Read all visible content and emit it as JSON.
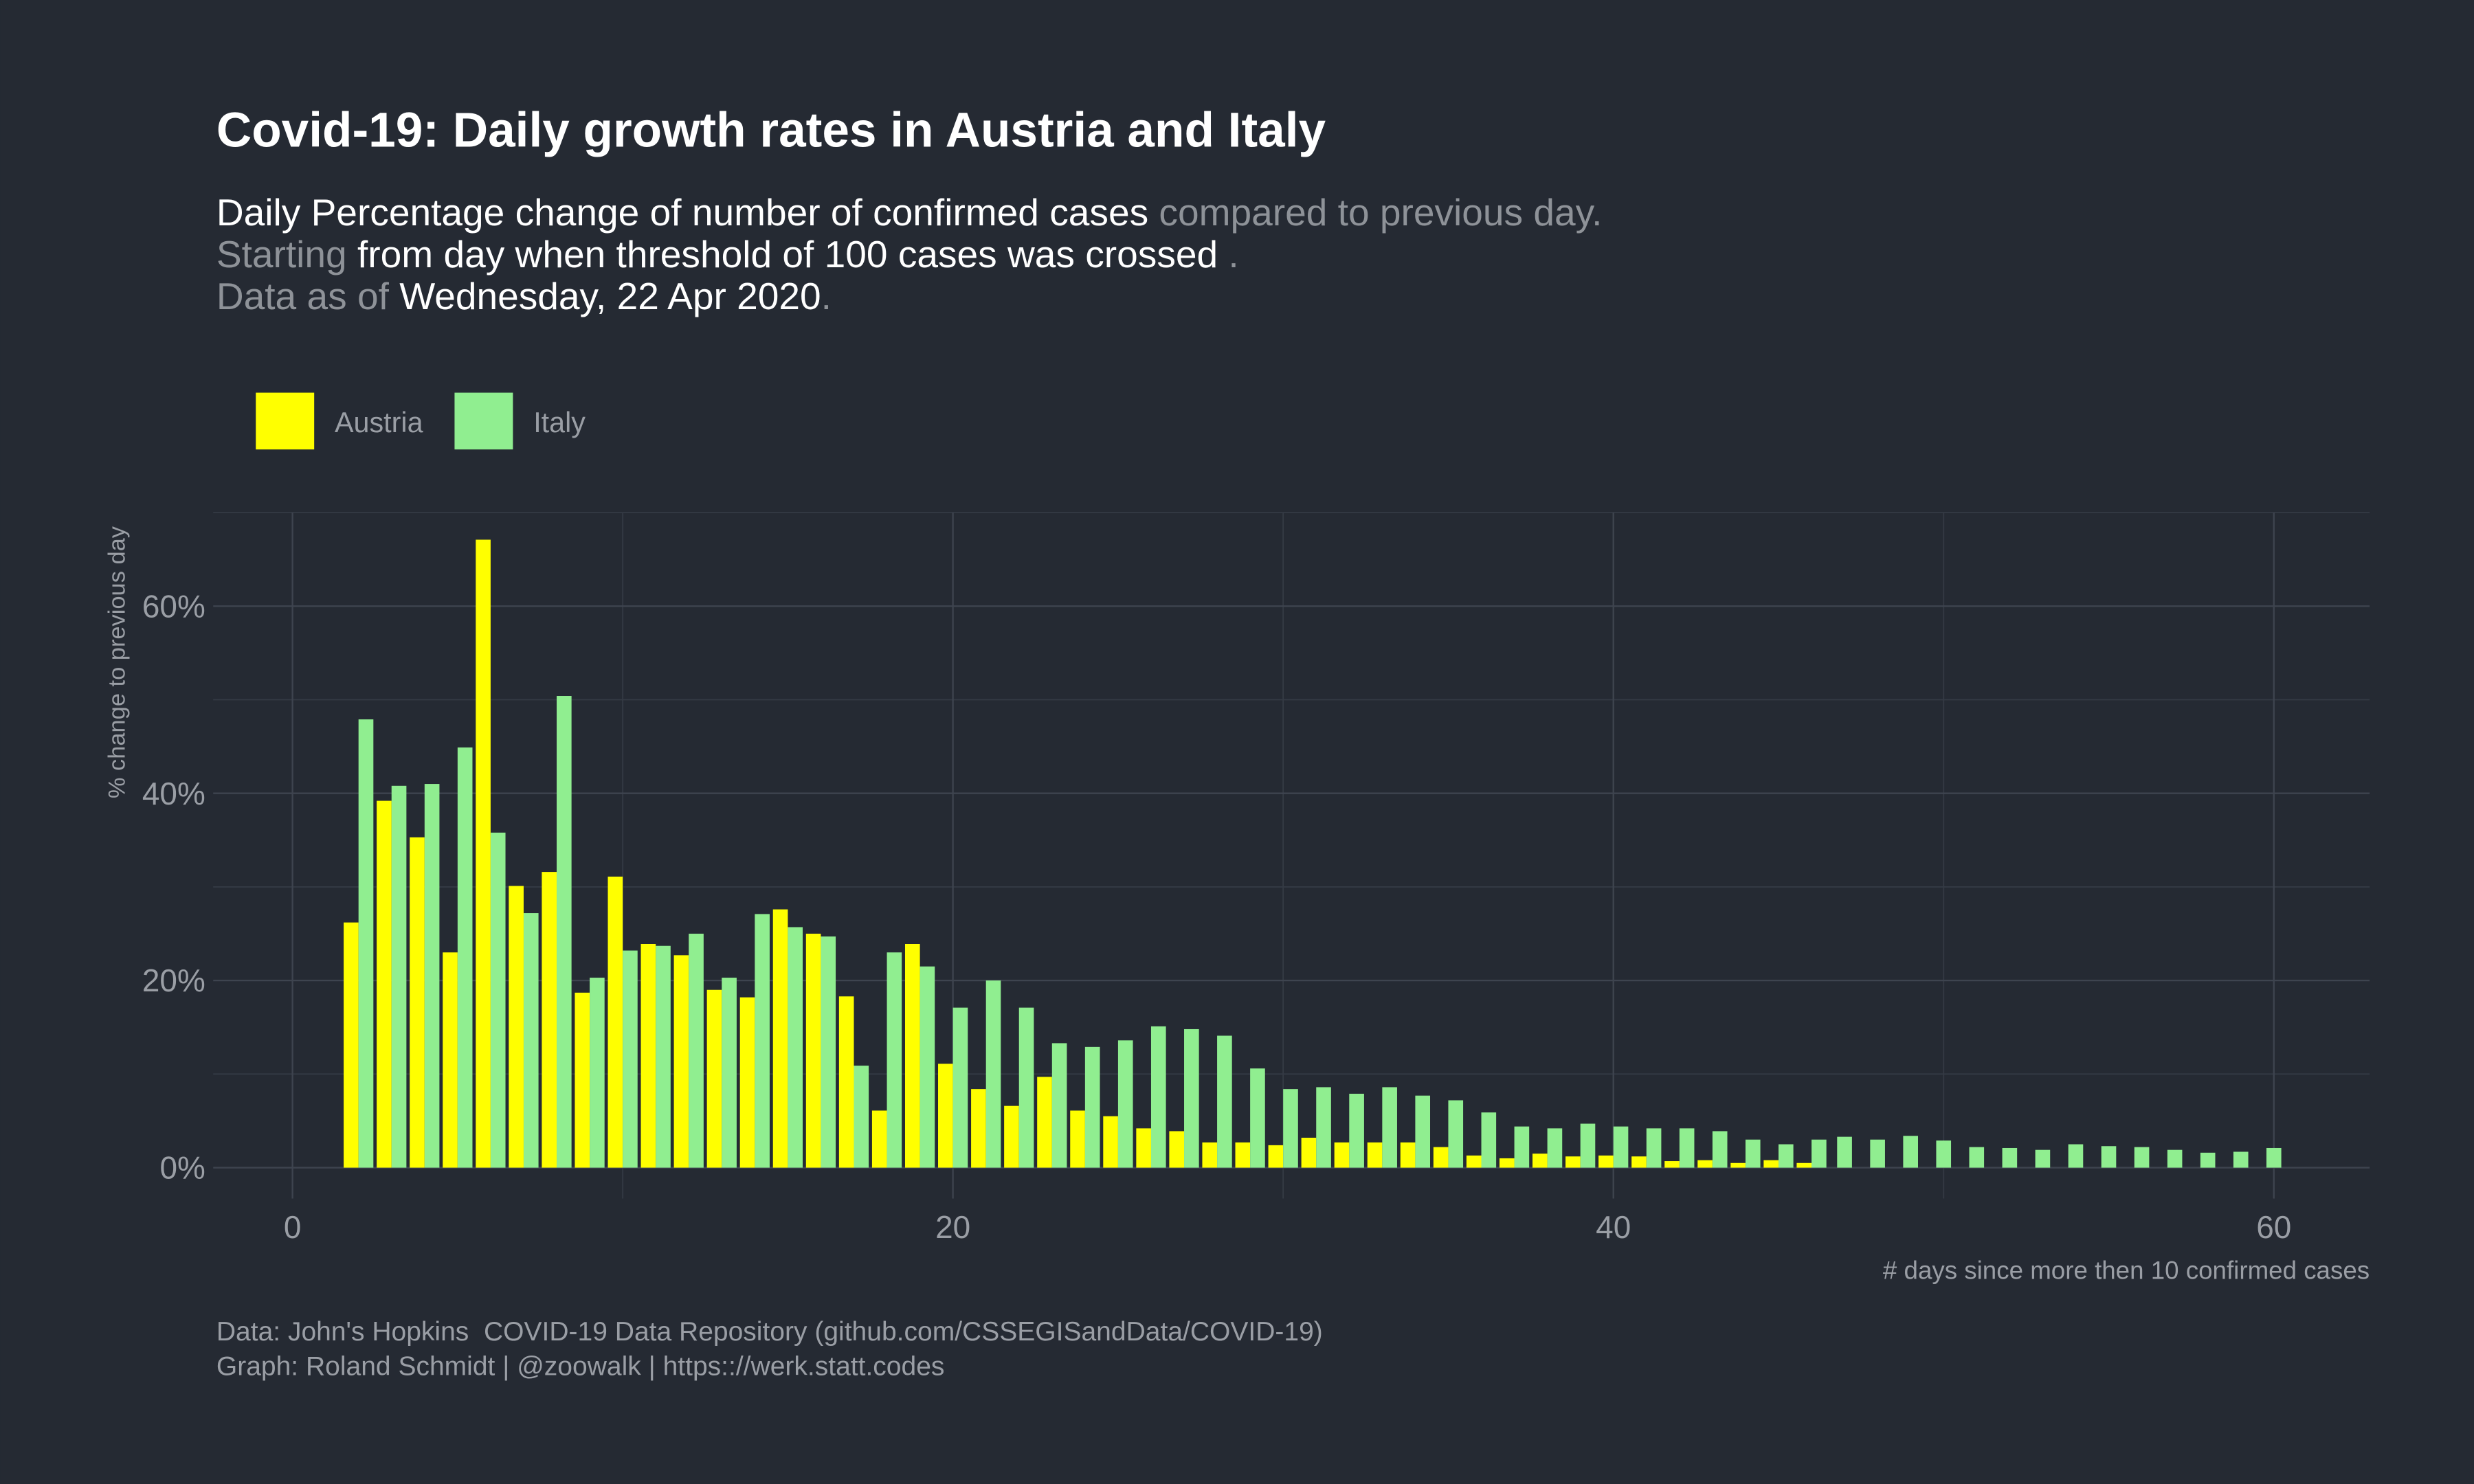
{
  "chart_data": {
    "type": "bar",
    "title": "Covid-19: Daily growth rates in Austria and Italy",
    "subtitle": [
      [
        {
          "text": "Daily Percentage change of number of confirmed cases",
          "highlight": true
        },
        {
          "text": " compared to previous day.",
          "highlight": false
        }
      ],
      [
        {
          "text": "Starting",
          "highlight": false
        },
        {
          "text": " from day when threshold of 100 cases was crossed ",
          "highlight": true
        },
        {
          "text": ".",
          "highlight": false
        }
      ],
      [
        {
          "text": "Data as of ",
          "highlight": false
        },
        {
          "text": "Wednesday, 22 Apr 2020",
          "highlight": true
        },
        {
          "text": ".",
          "highlight": false
        }
      ]
    ],
    "caption": [
      "Data: John's Hopkins  COVID-19 Data Repository (github.com/CSSEGISandData/COVID-19)",
      "Graph: Roland Schmidt | @zoowalk | https:://werk.statt.codes"
    ],
    "x_label": "# days since more then 10 confirmed cases",
    "y_label": "% change to previous day",
    "x": [
      2,
      3,
      4,
      5,
      6,
      7,
      8,
      9,
      10,
      11,
      12,
      13,
      14,
      15,
      16,
      17,
      18,
      19,
      20,
      21,
      22,
      23,
      24,
      25,
      26,
      27,
      28,
      29,
      30,
      31,
      32,
      33,
      34,
      35,
      36,
      37,
      38,
      39,
      40,
      41,
      42,
      43,
      44,
      45,
      46,
      47,
      48,
      49,
      50,
      51,
      52,
      53,
      54,
      55,
      56,
      57,
      58,
      59,
      60
    ],
    "series": [
      {
        "name": "Austria",
        "color": "#ffff00",
        "values": [
          26.2,
          39.2,
          35.3,
          23.0,
          67.1,
          30.1,
          31.6,
          18.7,
          31.1,
          23.9,
          22.7,
          19.0,
          18.2,
          27.6,
          25.0,
          18.3,
          6.1,
          23.9,
          11.1,
          8.4,
          6.6,
          9.7,
          6.1,
          5.5,
          4.2,
          3.9,
          2.7,
          2.7,
          2.4,
          3.2,
          2.7,
          2.7,
          2.7,
          2.2,
          1.3,
          1.0,
          1.5,
          1.2,
          1.3,
          1.2,
          0.7,
          0.8,
          0.5,
          0.8,
          0.5,
          null,
          null,
          null,
          null,
          null,
          null,
          null,
          null,
          null,
          null,
          null,
          null,
          null,
          null
        ]
      },
      {
        "name": "Italy",
        "color": "#90ee90",
        "values": [
          47.9,
          40.8,
          41.0,
          44.9,
          35.8,
          27.2,
          50.4,
          20.3,
          23.2,
          23.7,
          25.0,
          20.3,
          27.1,
          25.7,
          24.7,
          10.9,
          23.0,
          21.5,
          17.1,
          20.0,
          17.1,
          13.3,
          12.9,
          13.6,
          15.1,
          14.8,
          14.1,
          10.6,
          8.4,
          8.6,
          7.9,
          8.6,
          7.7,
          7.2,
          5.9,
          4.4,
          4.2,
          4.7,
          4.4,
          4.2,
          4.2,
          3.9,
          3.0,
          2.5,
          3.0,
          3.3,
          3.0,
          3.4,
          2.9,
          2.2,
          2.1,
          1.9,
          2.5,
          2.3,
          2.2,
          1.9,
          1.6,
          1.7,
          2.1
        ]
      }
    ],
    "xlim": [
      -2.4,
      62.9
    ],
    "xticks": [
      0,
      20,
      40,
      60
    ],
    "ylim": [
      -3.3,
      70
    ],
    "yticks": [
      {
        "value": 0,
        "label": "0%"
      },
      {
        "value": 20,
        "label": "20%"
      },
      {
        "value": 40,
        "label": "40%"
      },
      {
        "value": 60,
        "label": "60%"
      }
    ],
    "grid": true
  }
}
